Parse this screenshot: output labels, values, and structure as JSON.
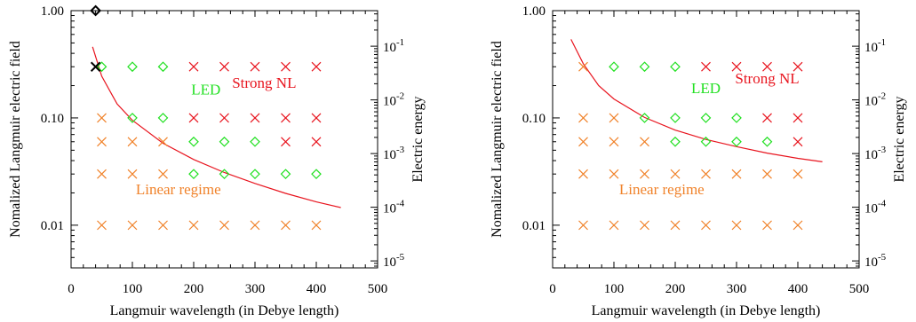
{
  "colors": {
    "linear": "#f0822a",
    "led": "#22e022",
    "strong": "#e8141e",
    "curve": "#e8141e",
    "special": "#000000"
  },
  "chart_data": [
    {
      "type": "scatter",
      "xlabel": "Langmuir wavelength (in Debye length)",
      "ylabel": "Nomalized Langmuir electric field",
      "y2label": "Electric energy",
      "xlim": [
        0,
        500
      ],
      "ylim": [
        0.004,
        1.0
      ],
      "yscale": "log",
      "x_ticks": [
        "0",
        "100",
        "200",
        "300",
        "400",
        "500"
      ],
      "y_ticks": [
        {
          "v": 1.0,
          "label": "1.00"
        },
        {
          "v": 0.1,
          "label": "0.10"
        },
        {
          "v": 0.01,
          "label": "0.01"
        }
      ],
      "y2_ticks": [
        {
          "v": 0.1,
          "label": "10^-1"
        },
        {
          "v": 0.01,
          "label": "10^-2"
        },
        {
          "v": 0.001,
          "label": "10^-3"
        },
        {
          "v": 0.0001,
          "label": "10^-4"
        },
        {
          "v": 1e-05,
          "label": "10^-5"
        }
      ],
      "y2lim": [
        7.41e-06,
        0.46
      ],
      "regions": [
        {
          "text": "LED",
          "x": 220,
          "y": 0.165,
          "color_key": "led"
        },
        {
          "text": "Strong NL",
          "x": 315,
          "y": 0.19,
          "color_key": "strong"
        },
        {
          "text": "Linear regime",
          "x": 175,
          "y": 0.0195,
          "color_key": "linear"
        }
      ],
      "curve": {
        "x": [
          35,
          50,
          75,
          100,
          150,
          200,
          250,
          300,
          350,
          400,
          440
        ],
        "y": [
          0.46,
          0.245,
          0.135,
          0.095,
          0.058,
          0.041,
          0.031,
          0.0245,
          0.0198,
          0.0165,
          0.0146
        ]
      },
      "points": [
        {
          "x": 50,
          "y": 0.3,
          "m": "d",
          "c": "led"
        },
        {
          "x": 100,
          "y": 0.3,
          "m": "d",
          "c": "led"
        },
        {
          "x": 150,
          "y": 0.3,
          "m": "d",
          "c": "led"
        },
        {
          "x": 200,
          "y": 0.3,
          "m": "x",
          "c": "strong"
        },
        {
          "x": 250,
          "y": 0.3,
          "m": "x",
          "c": "strong"
        },
        {
          "x": 300,
          "y": 0.3,
          "m": "x",
          "c": "strong"
        },
        {
          "x": 350,
          "y": 0.3,
          "m": "x",
          "c": "strong"
        },
        {
          "x": 400,
          "y": 0.3,
          "m": "x",
          "c": "strong"
        },
        {
          "x": 50,
          "y": 0.1,
          "m": "x",
          "c": "linear"
        },
        {
          "x": 100,
          "y": 0.1,
          "m": "d",
          "c": "led"
        },
        {
          "x": 150,
          "y": 0.1,
          "m": "d",
          "c": "led"
        },
        {
          "x": 200,
          "y": 0.1,
          "m": "x",
          "c": "strong"
        },
        {
          "x": 250,
          "y": 0.1,
          "m": "x",
          "c": "strong"
        },
        {
          "x": 300,
          "y": 0.1,
          "m": "x",
          "c": "strong"
        },
        {
          "x": 350,
          "y": 0.1,
          "m": "x",
          "c": "strong"
        },
        {
          "x": 400,
          "y": 0.1,
          "m": "x",
          "c": "strong"
        },
        {
          "x": 50,
          "y": 0.06,
          "m": "x",
          "c": "linear"
        },
        {
          "x": 100,
          "y": 0.06,
          "m": "x",
          "c": "linear"
        },
        {
          "x": 150,
          "y": 0.06,
          "m": "x",
          "c": "linear"
        },
        {
          "x": 200,
          "y": 0.06,
          "m": "d",
          "c": "led"
        },
        {
          "x": 250,
          "y": 0.06,
          "m": "d",
          "c": "led"
        },
        {
          "x": 300,
          "y": 0.06,
          "m": "d",
          "c": "led"
        },
        {
          "x": 350,
          "y": 0.06,
          "m": "x",
          "c": "strong"
        },
        {
          "x": 400,
          "y": 0.06,
          "m": "x",
          "c": "strong"
        },
        {
          "x": 50,
          "y": 0.03,
          "m": "x",
          "c": "linear"
        },
        {
          "x": 100,
          "y": 0.03,
          "m": "x",
          "c": "linear"
        },
        {
          "x": 150,
          "y": 0.03,
          "m": "x",
          "c": "linear"
        },
        {
          "x": 200,
          "y": 0.03,
          "m": "d",
          "c": "led"
        },
        {
          "x": 250,
          "y": 0.03,
          "m": "d",
          "c": "led"
        },
        {
          "x": 300,
          "y": 0.03,
          "m": "d",
          "c": "led"
        },
        {
          "x": 350,
          "y": 0.03,
          "m": "d",
          "c": "led"
        },
        {
          "x": 400,
          "y": 0.03,
          "m": "d",
          "c": "led"
        },
        {
          "x": 50,
          "y": 0.01,
          "m": "x",
          "c": "linear"
        },
        {
          "x": 100,
          "y": 0.01,
          "m": "x",
          "c": "linear"
        },
        {
          "x": 150,
          "y": 0.01,
          "m": "x",
          "c": "linear"
        },
        {
          "x": 200,
          "y": 0.01,
          "m": "x",
          "c": "linear"
        },
        {
          "x": 250,
          "y": 0.01,
          "m": "x",
          "c": "linear"
        },
        {
          "x": 300,
          "y": 0.01,
          "m": "x",
          "c": "linear"
        },
        {
          "x": 350,
          "y": 0.01,
          "m": "x",
          "c": "linear"
        },
        {
          "x": 400,
          "y": 0.01,
          "m": "x",
          "c": "linear"
        },
        {
          "x": 40,
          "y": 1.0,
          "m": "d",
          "c": "special"
        },
        {
          "x": 40,
          "y": 0.3,
          "m": "x",
          "c": "special"
        }
      ]
    },
    {
      "type": "scatter",
      "xlabel": "Langmuir wavelength (in Debye length)",
      "ylabel": "Nomalized Langmuir electric field",
      "y2label": "Electric energy",
      "xlim": [
        0,
        500
      ],
      "ylim": [
        0.004,
        1.0
      ],
      "yscale": "log",
      "x_ticks": [
        "0",
        "100",
        "200",
        "300",
        "400",
        "500"
      ],
      "y_ticks": [
        {
          "v": 1.0,
          "label": "1.00"
        },
        {
          "v": 0.1,
          "label": "0.10"
        },
        {
          "v": 0.01,
          "label": "0.01"
        }
      ],
      "y2_ticks": [
        {
          "v": 0.1,
          "label": "10^-1"
        },
        {
          "v": 0.01,
          "label": "10^-2"
        },
        {
          "v": 0.001,
          "label": "10^-3"
        },
        {
          "v": 0.0001,
          "label": "10^-4"
        },
        {
          "v": 1e-05,
          "label": "10^-5"
        }
      ],
      "y2lim": [
        7.41e-06,
        0.46
      ],
      "regions": [
        {
          "text": "LED",
          "x": 250,
          "y": 0.17,
          "color_key": "led"
        },
        {
          "text": "Strong NL",
          "x": 350,
          "y": 0.21,
          "color_key": "strong"
        },
        {
          "text": "Linear regime",
          "x": 178,
          "y": 0.0195,
          "color_key": "linear"
        }
      ],
      "curve": {
        "x": [
          30,
          50,
          75,
          100,
          150,
          200,
          250,
          300,
          350,
          400,
          440
        ],
        "y": [
          0.54,
          0.32,
          0.2,
          0.15,
          0.101,
          0.077,
          0.063,
          0.054,
          0.047,
          0.042,
          0.039
        ]
      },
      "points": [
        {
          "x": 50,
          "y": 0.3,
          "m": "x",
          "c": "linear"
        },
        {
          "x": 100,
          "y": 0.3,
          "m": "d",
          "c": "led"
        },
        {
          "x": 150,
          "y": 0.3,
          "m": "d",
          "c": "led"
        },
        {
          "x": 200,
          "y": 0.3,
          "m": "d",
          "c": "led"
        },
        {
          "x": 250,
          "y": 0.3,
          "m": "x",
          "c": "strong"
        },
        {
          "x": 300,
          "y": 0.3,
          "m": "x",
          "c": "strong"
        },
        {
          "x": 350,
          "y": 0.3,
          "m": "x",
          "c": "strong"
        },
        {
          "x": 400,
          "y": 0.3,
          "m": "x",
          "c": "strong"
        },
        {
          "x": 50,
          "y": 0.1,
          "m": "x",
          "c": "linear"
        },
        {
          "x": 100,
          "y": 0.1,
          "m": "x",
          "c": "linear"
        },
        {
          "x": 150,
          "y": 0.1,
          "m": "d",
          "c": "led"
        },
        {
          "x": 200,
          "y": 0.1,
          "m": "d",
          "c": "led"
        },
        {
          "x": 250,
          "y": 0.1,
          "m": "d",
          "c": "led"
        },
        {
          "x": 300,
          "y": 0.1,
          "m": "d",
          "c": "led"
        },
        {
          "x": 350,
          "y": 0.1,
          "m": "x",
          "c": "strong"
        },
        {
          "x": 400,
          "y": 0.1,
          "m": "x",
          "c": "strong"
        },
        {
          "x": 50,
          "y": 0.06,
          "m": "x",
          "c": "linear"
        },
        {
          "x": 100,
          "y": 0.06,
          "m": "x",
          "c": "linear"
        },
        {
          "x": 150,
          "y": 0.06,
          "m": "x",
          "c": "linear"
        },
        {
          "x": 200,
          "y": 0.06,
          "m": "d",
          "c": "led"
        },
        {
          "x": 250,
          "y": 0.06,
          "m": "d",
          "c": "led"
        },
        {
          "x": 300,
          "y": 0.06,
          "m": "d",
          "c": "led"
        },
        {
          "x": 350,
          "y": 0.06,
          "m": "d",
          "c": "led"
        },
        {
          "x": 400,
          "y": 0.06,
          "m": "x",
          "c": "strong"
        },
        {
          "x": 50,
          "y": 0.03,
          "m": "x",
          "c": "linear"
        },
        {
          "x": 100,
          "y": 0.03,
          "m": "x",
          "c": "linear"
        },
        {
          "x": 150,
          "y": 0.03,
          "m": "x",
          "c": "linear"
        },
        {
          "x": 200,
          "y": 0.03,
          "m": "x",
          "c": "linear"
        },
        {
          "x": 250,
          "y": 0.03,
          "m": "x",
          "c": "linear"
        },
        {
          "x": 300,
          "y": 0.03,
          "m": "x",
          "c": "linear"
        },
        {
          "x": 350,
          "y": 0.03,
          "m": "x",
          "c": "linear"
        },
        {
          "x": 400,
          "y": 0.03,
          "m": "x",
          "c": "linear"
        },
        {
          "x": 50,
          "y": 0.01,
          "m": "x",
          "c": "linear"
        },
        {
          "x": 100,
          "y": 0.01,
          "m": "x",
          "c": "linear"
        },
        {
          "x": 150,
          "y": 0.01,
          "m": "x",
          "c": "linear"
        },
        {
          "x": 200,
          "y": 0.01,
          "m": "x",
          "c": "linear"
        },
        {
          "x": 250,
          "y": 0.01,
          "m": "x",
          "c": "linear"
        },
        {
          "x": 300,
          "y": 0.01,
          "m": "x",
          "c": "linear"
        },
        {
          "x": 350,
          "y": 0.01,
          "m": "x",
          "c": "linear"
        },
        {
          "x": 400,
          "y": 0.01,
          "m": "x",
          "c": "linear"
        }
      ]
    }
  ]
}
